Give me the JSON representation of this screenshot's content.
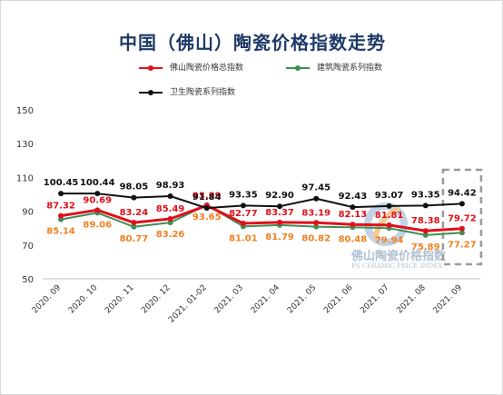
{
  "watermark": {
    "text_cn": "佛山陶瓷价格指数",
    "text_en": "FS CERAMIC PRICE INDEX"
  },
  "colors": {
    "series": [
      "#e0101a",
      "#3f8f56",
      "#111111"
    ],
    "labels": [
      "#e0101a",
      "#f08020",
      "#111111"
    ],
    "highlight_box": "#9a9a9a"
  },
  "chart_data": {
    "type": "line",
    "title": "中国（佛山）陶瓷价格指数走势",
    "xlabel": "",
    "ylabel": "",
    "categories": [
      "2020. 09",
      "2020. 10",
      "2020. 11",
      "2020. 12",
      "2021. 01-02",
      "2021. 03",
      "2021. 04",
      "2021. 05",
      "2021. 06",
      "2021. 07",
      "2021. 08",
      "2021. 09"
    ],
    "yticks": [
      "150",
      "130",
      "110",
      "90",
      "70",
      "50"
    ],
    "ylim": [
      50,
      150
    ],
    "legend": "top",
    "grid": false,
    "series": [
      {
        "name": "佛山陶瓷价格总指数",
        "values": [
          87.32,
          90.69,
          83.24,
          85.49,
          93.39,
          82.77,
          83.37,
          83.19,
          82.13,
          81.81,
          78.38,
          79.72
        ],
        "labels": [
          "87.32",
          "90.69",
          "83.24",
          "85.49",
          "93.39",
          "82.77",
          "83.37",
          "83.19",
          "82.13",
          "81.81",
          "78.38",
          "79.72"
        ]
      },
      {
        "name": "建筑陶瓷系列指数",
        "values": [
          85.14,
          89.06,
          80.77,
          83.26,
          93.65,
          81.01,
          81.79,
          80.82,
          80.48,
          79.94,
          75.89,
          77.27
        ],
        "labels": [
          "85.14",
          "89.06",
          "80.77",
          "83.26",
          "93.65",
          "81.01",
          "81.79",
          "80.82",
          "80.48",
          "79.94",
          "75.89",
          "77.27"
        ]
      },
      {
        "name": "卫生陶瓷系列指数",
        "values": [
          100.45,
          100.44,
          98.05,
          98.93,
          91.84,
          93.35,
          92.9,
          97.45,
          92.43,
          93.07,
          93.35,
          94.42
        ],
        "labels": [
          "100.45",
          "100.44",
          "98.05",
          "98.93",
          "91.84",
          "93.35",
          "92.90",
          "97.45",
          "92.43",
          "93.07",
          "93.35",
          "94.42"
        ]
      }
    ]
  }
}
